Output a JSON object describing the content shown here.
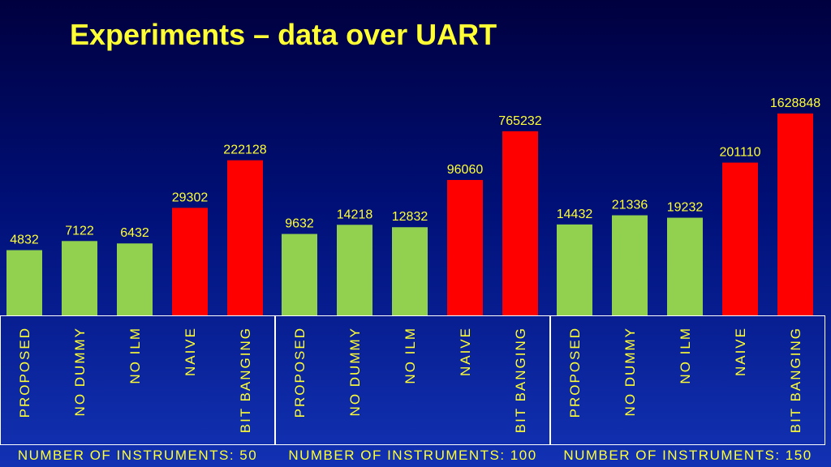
{
  "title": "Experiments – data over UART",
  "colors": {
    "default_bar": "#92d050",
    "highlight_bar": "#ff0000",
    "text": "#ffff33",
    "frame": "#ffffff"
  },
  "chart_data": {
    "type": "bar",
    "groups": [
      {
        "label": "NUMBER OF INSTRUMENTS: 50",
        "categories": [
          "PROPOSED",
          "NO DUMMY",
          "NO ILM",
          "NAIVE",
          "BIT BANGING"
        ],
        "values": [
          4832,
          7122,
          6432,
          29302,
          222128
        ]
      },
      {
        "label": "NUMBER OF INSTRUMENTS: 100",
        "categories": [
          "PROPOSED",
          "NO DUMMY",
          "NO ILM",
          "NAIVE",
          "BIT BANGING"
        ],
        "values": [
          9632,
          14218,
          12832,
          96060,
          765232
        ]
      },
      {
        "label": "NUMBER OF INSTRUMENTS: 150",
        "categories": [
          "PROPOSED",
          "NO DUMMY",
          "NO ILM",
          "NAIVE",
          "BIT BANGING"
        ],
        "values": [
          14432,
          21336,
          19232,
          201110,
          1628848
        ]
      }
    ],
    "highlight_categories": [
      "NAIVE",
      "BIT BANGING"
    ],
    "yscale": "log",
    "grid": false
  }
}
